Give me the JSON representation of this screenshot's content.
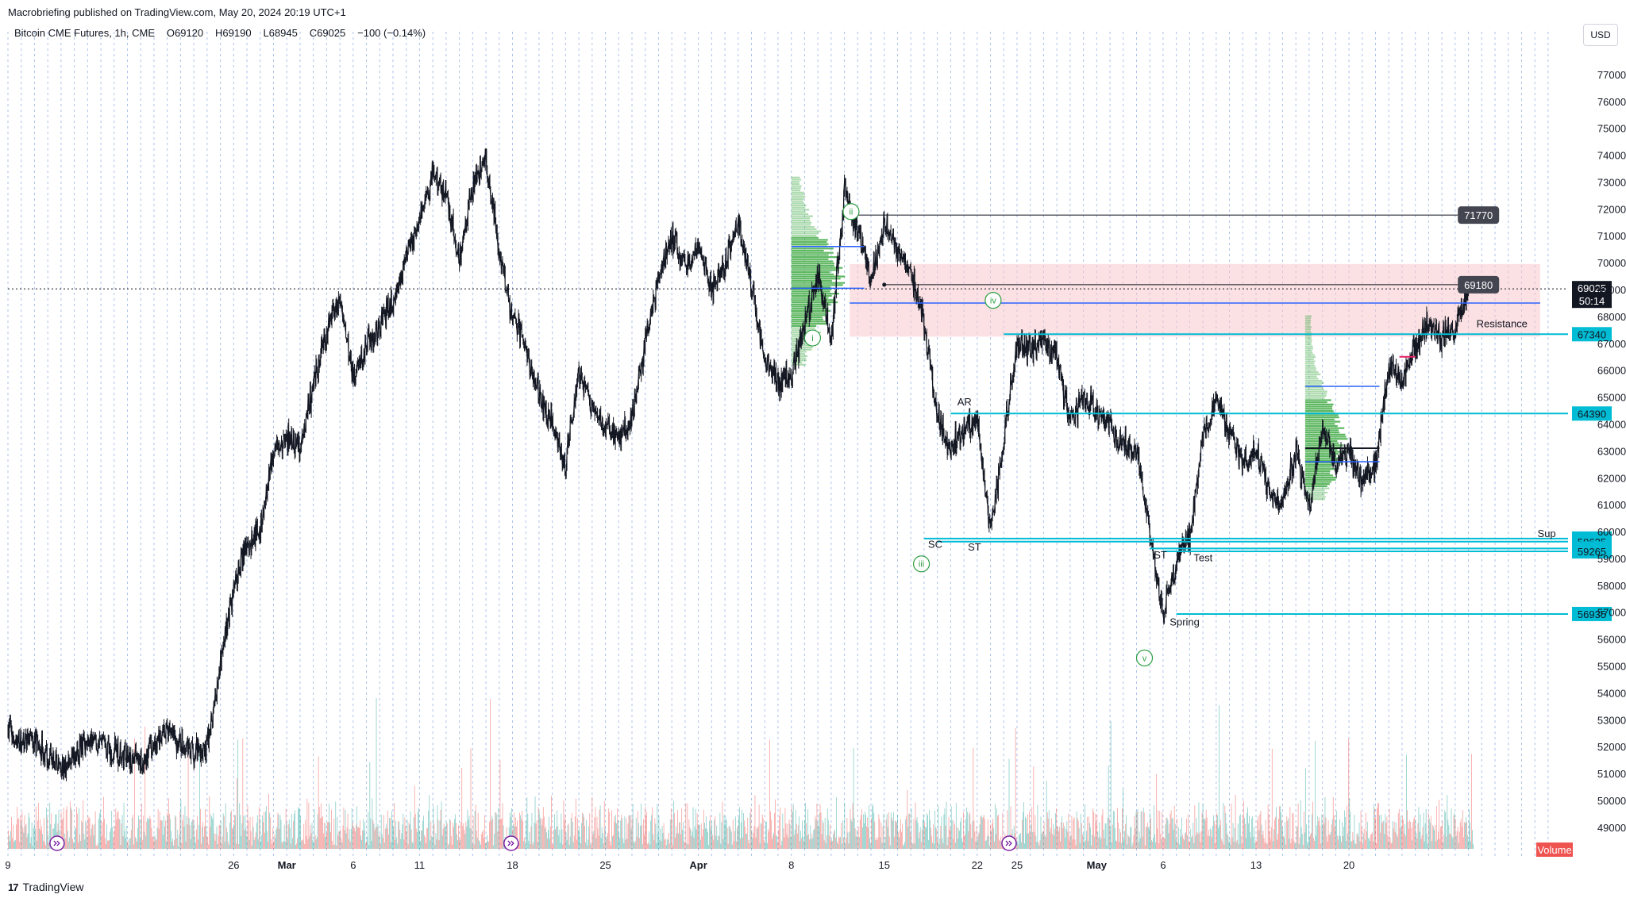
{
  "publish_line": "Macrobriefing published on TradingView.com, May 20, 2024 20:19 UTC+1",
  "legend": {
    "symbol": "Bitcoin CME Futures, 1h, CME",
    "open": "O69120",
    "high": "H69190",
    "low": "L68945",
    "close": "C69025",
    "change": "−100 (−0.14%)"
  },
  "currency": "USD",
  "brand": "TradingView",
  "colors": {
    "up": "#131722",
    "level_cyan": "#00bcd4",
    "level_blue": "#2962ff",
    "wave_green": "#2e9e44",
    "zone_pink": "#f8c8cc",
    "volume_up": "#26a69a",
    "volume_down": "#ef5350",
    "profile_green": "#4caf50"
  },
  "chart_data": {
    "type": "line",
    "title": "",
    "xlabel": "",
    "ylabel": "",
    "ylim": [
      48200,
      78000
    ],
    "x_ticks": [
      {
        "label": "9",
        "day": 0,
        "month": false
      },
      {
        "label": "26",
        "day": 17,
        "month": false
      },
      {
        "label": "Mar",
        "day": 21,
        "month": true
      },
      {
        "label": "6",
        "day": 26,
        "month": false
      },
      {
        "label": "11",
        "day": 31,
        "month": false
      },
      {
        "label": "18",
        "day": 38,
        "month": false
      },
      {
        "label": "25",
        "day": 45,
        "month": false
      },
      {
        "label": "Apr",
        "day": 52,
        "month": true
      },
      {
        "label": "8",
        "day": 59,
        "month": false
      },
      {
        "label": "15",
        "day": 66,
        "month": false
      },
      {
        "label": "22",
        "day": 73,
        "month": false
      },
      {
        "label": "25",
        "day": 76,
        "month": false
      },
      {
        "label": "May",
        "day": 82,
        "month": true
      },
      {
        "label": "6",
        "day": 87,
        "month": false
      },
      {
        "label": "13",
        "day": 94,
        "month": false
      },
      {
        "label": "20",
        "day": 101,
        "month": false
      }
    ],
    "y_ticks": [
      49000,
      50000,
      51000,
      52000,
      53000,
      54000,
      55000,
      56000,
      57000,
      58000,
      59000,
      60000,
      61000,
      62000,
      63000,
      64000,
      65000,
      66000,
      67000,
      68000,
      69000,
      70000,
      71000,
      72000,
      73000,
      74000,
      75000,
      76000,
      77000
    ],
    "series": [
      {
        "values": [
          [
            0,
            52500
          ],
          [
            2,
            52200
          ],
          [
            4,
            51100
          ],
          [
            6,
            52300
          ],
          [
            8,
            51800
          ],
          [
            10,
            51400
          ],
          [
            12,
            52600
          ],
          [
            14,
            51700
          ],
          [
            15,
            52000
          ],
          [
            17,
            58000
          ],
          [
            18,
            59500
          ],
          [
            19,
            60000
          ],
          [
            20,
            63000
          ],
          [
            21,
            63500
          ],
          [
            22,
            63200
          ],
          [
            23,
            65500
          ],
          [
            24,
            67500
          ],
          [
            25,
            68800
          ],
          [
            26,
            65500
          ],
          [
            27,
            67000
          ],
          [
            28,
            67600
          ],
          [
            29,
            68500
          ],
          [
            30,
            70300
          ],
          [
            31,
            71600
          ],
          [
            32,
            73300
          ],
          [
            33,
            72500
          ],
          [
            34,
            70000
          ],
          [
            35,
            72900
          ],
          [
            36,
            73800
          ],
          [
            37,
            70500
          ],
          [
            38,
            68000
          ],
          [
            39,
            67000
          ],
          [
            40,
            65000
          ],
          [
            41,
            64000
          ],
          [
            42,
            62500
          ],
          [
            43,
            66000
          ],
          [
            44,
            64500
          ],
          [
            45,
            64000
          ],
          [
            46,
            63500
          ],
          [
            47,
            64300
          ],
          [
            48,
            67000
          ],
          [
            49,
            69500
          ],
          [
            50,
            71000
          ],
          [
            51,
            70000
          ],
          [
            52,
            70600
          ],
          [
            53,
            69000
          ],
          [
            54,
            69900
          ],
          [
            55,
            71500
          ],
          [
            56,
            69000
          ],
          [
            57,
            66500
          ],
          [
            58,
            65500
          ],
          [
            59,
            65800
          ],
          [
            60,
            67600
          ],
          [
            61,
            69600
          ],
          [
            62,
            67000
          ],
          [
            63,
            72800
          ],
          [
            64,
            71200
          ],
          [
            65,
            69500
          ],
          [
            66,
            71400
          ],
          [
            67,
            70500
          ],
          [
            68,
            69600
          ],
          [
            69,
            67800
          ],
          [
            70,
            64300
          ],
          [
            71,
            63000
          ],
          [
            72,
            63800
          ],
          [
            73,
            64200
          ],
          [
            74,
            60000
          ],
          [
            75,
            63500
          ],
          [
            76,
            67000
          ],
          [
            77,
            66800
          ],
          [
            78,
            67200
          ],
          [
            79,
            66500
          ],
          [
            80,
            64000
          ],
          [
            81,
            65000
          ],
          [
            82,
            64500
          ],
          [
            83,
            64000
          ],
          [
            84,
            63200
          ],
          [
            85,
            63000
          ],
          [
            86,
            60000
          ],
          [
            87,
            57000
          ],
          [
            88,
            59000
          ],
          [
            89,
            59800
          ],
          [
            90,
            63500
          ],
          [
            91,
            65000
          ],
          [
            92,
            63500
          ],
          [
            93,
            62500
          ],
          [
            94,
            63000
          ],
          [
            95,
            61500
          ],
          [
            96,
            61000
          ],
          [
            97,
            63000
          ],
          [
            98,
            60800
          ],
          [
            99,
            64000
          ],
          [
            100,
            62500
          ],
          [
            101,
            63000
          ],
          [
            102,
            61800
          ],
          [
            103,
            62500
          ],
          [
            104,
            66000
          ],
          [
            105,
            65500
          ],
          [
            106,
            67000
          ],
          [
            107,
            67800
          ],
          [
            108,
            67200
          ],
          [
            109,
            67600
          ],
          [
            110,
            69025
          ]
        ]
      }
    ],
    "volume": [
      0.3,
      0.5,
      0.7,
      0.4,
      0.6,
      0.35,
      0.45,
      0.8,
      0.5,
      0.3
    ],
    "levels": [
      {
        "value": 71770,
        "label": "71770",
        "style": "dark",
        "start_day": 63
      },
      {
        "value": 69180,
        "label": "69180",
        "style": "dark",
        "start_day": 66
      },
      {
        "value": 67340,
        "label": "67340",
        "style": "cyan",
        "start_day": 75
      },
      {
        "value": 64390,
        "label": "64390",
        "style": "cyan",
        "start_day": 71
      },
      {
        "value": 59740,
        "label": "59740",
        "style": "cyan",
        "start_day": 69
      },
      {
        "value": 59625,
        "label": "59625",
        "style": "cyan",
        "start_day": 70
      },
      {
        "value": 59370,
        "label": "59370",
        "style": "cyan",
        "start_day": 86
      },
      {
        "value": 59265,
        "label": "59265",
        "style": "cyan",
        "start_day": 87
      },
      {
        "value": 56935,
        "label": "56935",
        "style": "cyan",
        "start_day": 88
      }
    ],
    "price_tag": {
      "value": 69025,
      "label": "69025",
      "countdown": "50:14"
    },
    "annotations": [
      {
        "text": "SC",
        "day": 69.3,
        "y": 59400
      },
      {
        "text": "ST",
        "day": 72.3,
        "y": 59300
      },
      {
        "text": "AR",
        "day": 71.5,
        "y": 64700
      },
      {
        "text": "ST",
        "day": 86.3,
        "y": 59000
      },
      {
        "text": "Test",
        "day": 89.3,
        "y": 58900
      },
      {
        "text": "Spring",
        "day": 87.5,
        "y": 56500
      },
      {
        "text": "Resistance",
        "day": 110.6,
        "y": 67600
      },
      {
        "text": "Sup",
        "day": 115.2,
        "y": 59800
      }
    ],
    "waves": [
      {
        "text": "i",
        "day": 60.6,
        "y": 67200
      },
      {
        "text": "ii",
        "day": 63.5,
        "y": 71900
      },
      {
        "text": "iii",
        "day": 68.8,
        "y": 58800
      },
      {
        "text": "iv",
        "day": 74.2,
        "y": 68600
      },
      {
        "text": "v",
        "day": 85.6,
        "y": 55300
      }
    ],
    "volume_label": "Volume"
  }
}
